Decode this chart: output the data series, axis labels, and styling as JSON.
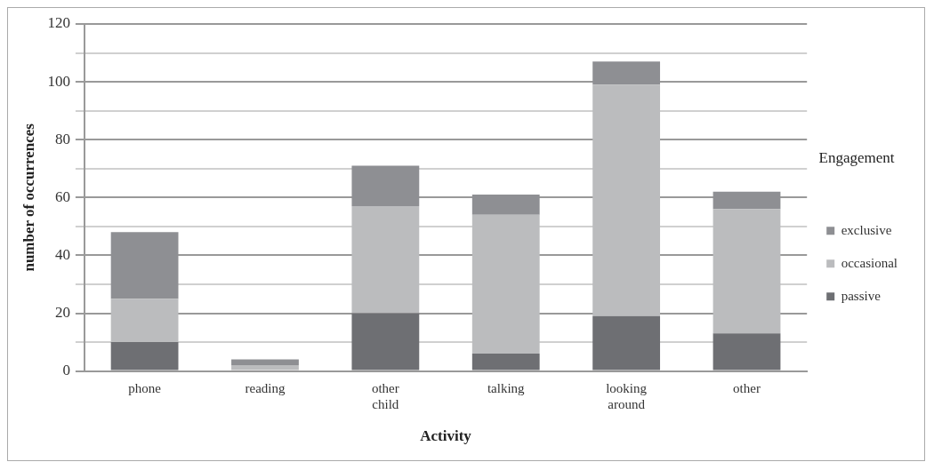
{
  "chart_data": {
    "type": "bar",
    "stacked": true,
    "xlabel": "Activity",
    "ylabel": "number of occurrences",
    "legend_title": "Engagement",
    "legend": "right",
    "grid": "y",
    "categories": [
      "phone",
      "reading",
      "other child",
      "talking",
      "looking around",
      "other"
    ],
    "series": [
      {
        "name": "passive",
        "color": "#6e6f73",
        "values": [
          10,
          0,
          20,
          6,
          19,
          13
        ]
      },
      {
        "name": "occasional",
        "color": "#bbbcbe",
        "values": [
          15,
          2,
          37,
          48,
          80,
          43
        ]
      },
      {
        "name": "exclusive",
        "color": "#8e8f93",
        "values": [
          23,
          2,
          14,
          7,
          8,
          6
        ]
      }
    ],
    "ylim": [
      0,
      120
    ],
    "yticks": [
      0,
      {
        "value": 10,
        "label": null
      },
      20,
      {
        "value": 30,
        "label": null
      },
      40,
      {
        "value": 50,
        "label": null
      },
      60,
      {
        "value": 70,
        "label": null
      },
      80,
      {
        "value": 90,
        "label": null
      },
      100,
      {
        "value": 110,
        "label": null
      },
      120
    ]
  }
}
